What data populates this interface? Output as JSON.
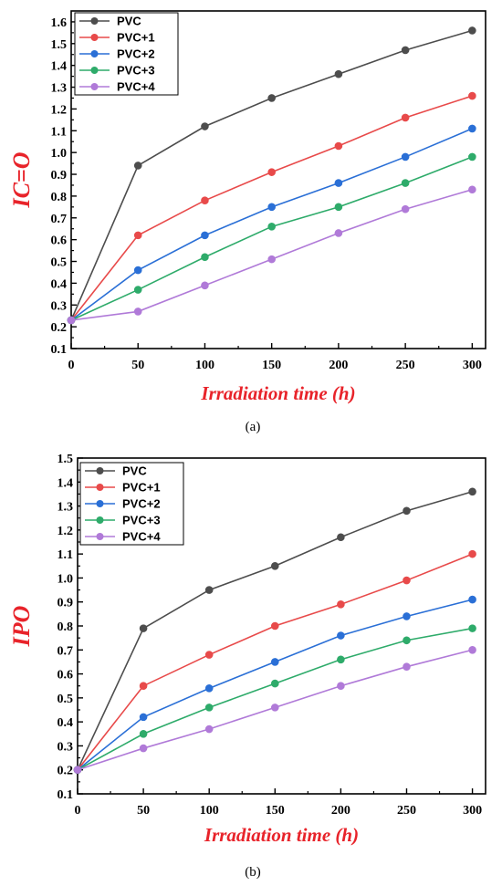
{
  "chart_data": [
    {
      "type": "line",
      "caption": "(a)",
      "xlabel": "Irradiation time (h)",
      "ylabel": "IC=O",
      "x": [
        0,
        50,
        100,
        150,
        200,
        250,
        300
      ],
      "xlim": [
        0,
        310
      ],
      "ylim": [
        0.1,
        1.65
      ],
      "xticks": [
        0,
        50,
        100,
        150,
        200,
        250,
        300
      ],
      "yticks": [
        0.1,
        0.2,
        0.3,
        0.4,
        0.5,
        0.6,
        0.7,
        0.8,
        0.9,
        1.0,
        1.1,
        1.2,
        1.3,
        1.4,
        1.5,
        1.6
      ],
      "ytick_labels": [
        "0.1",
        "0.2",
        "0.3",
        "0.4",
        "0.5",
        "0.6",
        "0.7",
        "0.8",
        "0.9",
        "1.0",
        "1.1",
        "1.2",
        "1.3",
        "1.4",
        "1.5",
        "1.6"
      ],
      "legend_position": "top-left",
      "grid": false,
      "series": [
        {
          "name": "PVC",
          "color": "#4d4d4d",
          "values": [
            0.23,
            0.94,
            1.12,
            1.25,
            1.36,
            1.47,
            1.56
          ]
        },
        {
          "name": "PVC+1",
          "color": "#e84a4a",
          "values": [
            0.23,
            0.62,
            0.78,
            0.91,
            1.03,
            1.16,
            1.26
          ]
        },
        {
          "name": "PVC+2",
          "color": "#2a6fd6",
          "values": [
            0.23,
            0.46,
            0.62,
            0.75,
            0.86,
            0.98,
            1.11
          ]
        },
        {
          "name": "PVC+3",
          "color": "#2eab6a",
          "values": [
            0.23,
            0.37,
            0.52,
            0.66,
            0.75,
            0.86,
            0.98
          ]
        },
        {
          "name": "PVC+4",
          "color": "#b07ad8",
          "values": [
            0.23,
            0.27,
            0.39,
            0.51,
            0.63,
            0.74,
            0.83
          ]
        }
      ]
    },
    {
      "type": "line",
      "caption": "(b)",
      "xlabel": "Irradiation time (h)",
      "ylabel": "IPO",
      "x": [
        0,
        50,
        100,
        150,
        200,
        250,
        300
      ],
      "xlim": [
        0,
        310
      ],
      "ylim": [
        0.1,
        1.5
      ],
      "xticks": [
        0,
        50,
        100,
        150,
        200,
        250,
        300
      ],
      "yticks": [
        0.1,
        0.2,
        0.3,
        0.4,
        0.5,
        0.6,
        0.7,
        0.8,
        0.9,
        1.0,
        1.1,
        1.2,
        1.3,
        1.4,
        1.5
      ],
      "ytick_labels": [
        "0.1",
        "0.2",
        "0.3",
        "0.4",
        "0.5",
        "0.6",
        "0.7",
        "0.8",
        "0.9",
        "1.0",
        "1.1",
        "1.2",
        "1.3",
        "1.4",
        "1.5"
      ],
      "legend_position": "top-left",
      "grid": false,
      "series": [
        {
          "name": "PVC",
          "color": "#4d4d4d",
          "values": [
            0.2,
            0.79,
            0.95,
            1.05,
            1.17,
            1.28,
            1.36
          ]
        },
        {
          "name": "PVC+1",
          "color": "#e84a4a",
          "values": [
            0.2,
            0.55,
            0.68,
            0.8,
            0.89,
            0.99,
            1.1
          ]
        },
        {
          "name": "PVC+2",
          "color": "#2a6fd6",
          "values": [
            0.2,
            0.42,
            0.54,
            0.65,
            0.76,
            0.84,
            0.91
          ]
        },
        {
          "name": "PVC+3",
          "color": "#2eab6a",
          "values": [
            0.2,
            0.35,
            0.46,
            0.56,
            0.66,
            0.74,
            0.79
          ]
        },
        {
          "name": "PVC+4",
          "color": "#b07ad8",
          "values": [
            0.2,
            0.29,
            0.37,
            0.46,
            0.55,
            0.63,
            0.7
          ]
        }
      ]
    }
  ]
}
